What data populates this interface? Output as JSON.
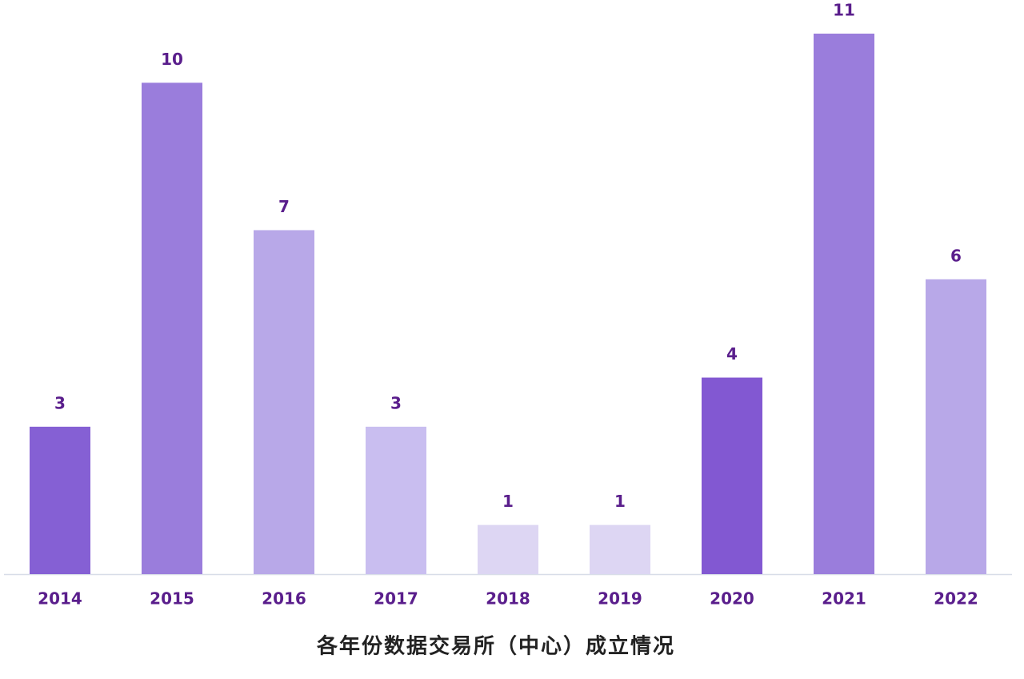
{
  "chart_data": {
    "type": "bar",
    "title": "各年份数据交易所（中心）成立情况",
    "categories": [
      "2014",
      "2015",
      "2016",
      "2017",
      "2018",
      "2019",
      "2020",
      "2021",
      "2022"
    ],
    "values": [
      3,
      10,
      7,
      3,
      1,
      1,
      4,
      11,
      6
    ],
    "colors": [
      "#8560d4",
      "#9a7ddc",
      "#b8a8e8",
      "#c9bef0",
      "#ddd6f3",
      "#ddd6f3",
      "#8258d2",
      "#9a7ddc",
      "#b8a8e8"
    ],
    "label_color": "#5a1e8c"
  }
}
